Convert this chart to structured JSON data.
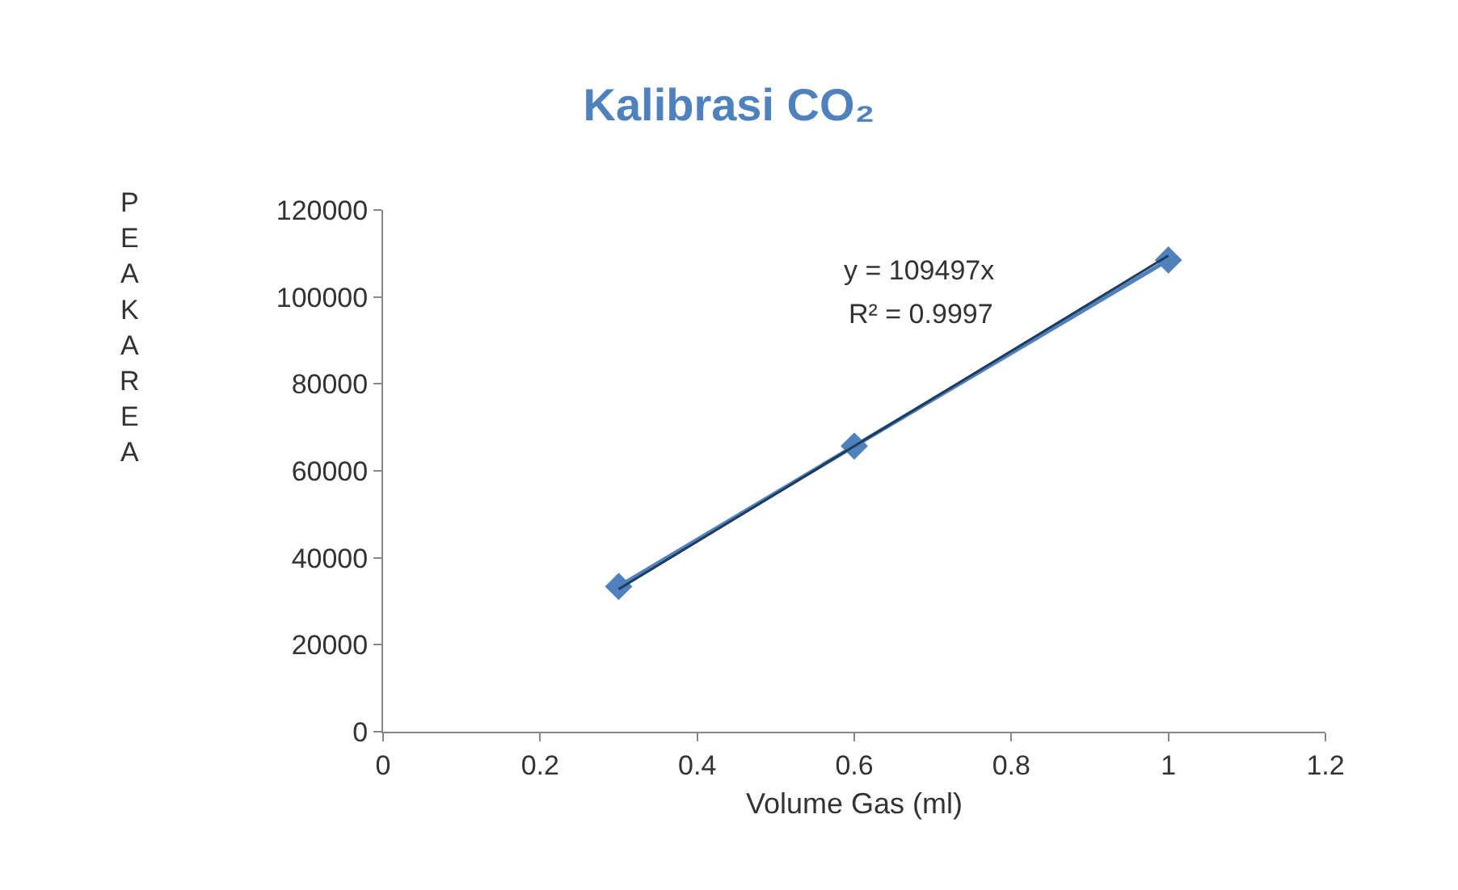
{
  "chart_data": {
    "type": "line",
    "title": "Kalibrasi CO₂",
    "xlabel": "Volume Gas (ml)",
    "ylabel": "PEAKAREA",
    "x": [
      0.3,
      0.6,
      1.0
    ],
    "series": [
      {
        "color": "#4f81bd",
        "values": [
          33400,
          65700,
          108500
        ],
        "marker": "diamond"
      },
      {
        "type": "line",
        "color": "#1f3a5a",
        "x": [
          0.3,
          1.0
        ],
        "values": [
          32800,
          109500
        ],
        "marker": "none"
      }
    ],
    "annotations": [
      "y = 109497x",
      "R² = 0.9997"
    ],
    "xlim": [
      0,
      1.2
    ],
    "xticks": [
      0,
      0.2,
      0.4,
      0.6,
      0.8,
      1,
      1.2
    ],
    "ylim": [
      0,
      120000
    ],
    "yticks": [
      0,
      20000,
      40000,
      60000,
      80000,
      100000,
      120000
    ],
    "line_style": "solid"
  }
}
